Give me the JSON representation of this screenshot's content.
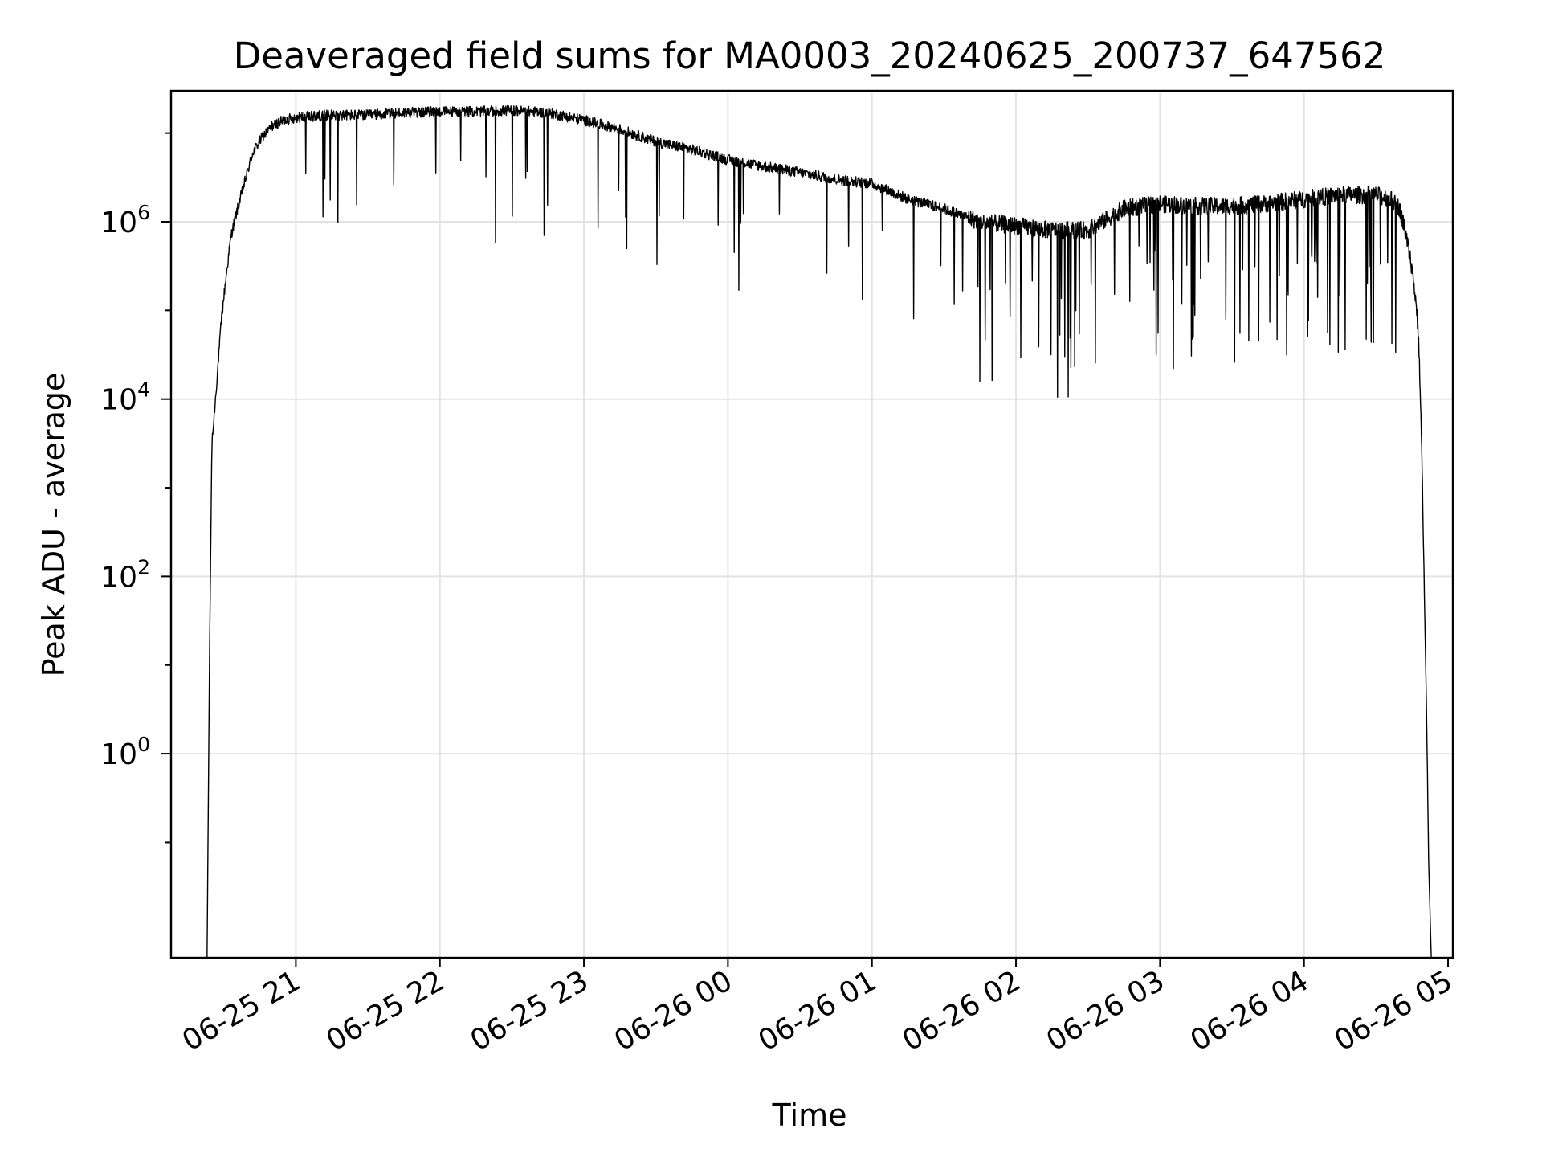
{
  "chart_data": {
    "type": "line",
    "title": "Deaveraged field sums for MA0003_20240625_200737_647562",
    "xlabel": "Time",
    "ylabel": "Peak ADU - average",
    "yscale": "log",
    "grid": true,
    "xlim": [
      "2024-06-25 20:08",
      "2024-06-26 05:02"
    ],
    "ylim": [
      0.005,
      30000000
    ],
    "x_ticks": [
      "06-25 21",
      "06-25 22",
      "06-25 23",
      "06-26 00",
      "06-26 01",
      "06-26 02",
      "06-26 03",
      "06-26 04",
      "06-26 05"
    ],
    "y_ticks": [
      {
        "base": "10",
        "exp": "6",
        "value": 1000000
      },
      {
        "base": "10",
        "exp": "4",
        "value": 10000
      },
      {
        "base": "10",
        "exp": "2",
        "value": 100
      },
      {
        "base": "10",
        "exp": "0",
        "value": 1
      }
    ],
    "series": [
      {
        "color": "#000000",
        "x": [
          "2024-06-25 20:23",
          "2024-06-25 20:24",
          "2024-06-25 20:25",
          "2024-06-25 20:27",
          "2024-06-25 20:29",
          "2024-06-25 20:31",
          "2024-06-25 20:33",
          "2024-06-25 20:36",
          "2024-06-25 20:39",
          "2024-06-25 20:42",
          "2024-06-25 20:46",
          "2024-06-25 20:50",
          "2024-06-25 20:55",
          "2024-06-25 21:00",
          "2024-06-25 21:15",
          "2024-06-25 21:30",
          "2024-06-25 21:45",
          "2024-06-25 22:00",
          "2024-06-25 22:15",
          "2024-06-25 22:30",
          "2024-06-25 22:45",
          "2024-06-25 23:00",
          "2024-06-25 23:15",
          "2024-06-25 23:30",
          "2024-06-25 23:45",
          "2024-06-26 00:00",
          "2024-06-26 00:15",
          "2024-06-26 00:30",
          "2024-06-26 00:45",
          "2024-06-26 01:00",
          "2024-06-26 01:15",
          "2024-06-26 01:30",
          "2024-06-26 01:45",
          "2024-06-26 02:00",
          "2024-06-26 02:15",
          "2024-06-26 02:30",
          "2024-06-26 02:45",
          "2024-06-26 03:00",
          "2024-06-26 03:15",
          "2024-06-26 03:30",
          "2024-06-26 03:45",
          "2024-06-26 04:00",
          "2024-06-26 04:15",
          "2024-06-26 04:30",
          "2024-06-26 04:36",
          "2024-06-26 04:40",
          "2024-06-26 04:43",
          "2024-06-26 04:45",
          "2024-06-26 04:47",
          "2024-06-26 04:48",
          "2024-06-26 04:49",
          "2024-06-26 04:50",
          "2024-06-26 04:51",
          "2024-06-26 04:52",
          "2024-06-26 04:53"
        ],
        "y": [
          0.005,
          10,
          3000,
          15000,
          80000,
          250000,
          700000,
          1500000,
          3000000,
          6000000,
          9000000,
          12000000,
          14000000,
          15000000,
          16000000,
          16000000,
          17000000,
          17500000,
          17500000,
          18000000,
          17000000,
          14000000,
          11000000,
          8000000,
          6500000,
          5000000,
          4200000,
          3600000,
          3000000,
          2700000,
          1800000,
          1400000,
          1000000,
          900000,
          800000,
          800000,
          1400000,
          1600000,
          1500000,
          1500000,
          1600000,
          1800000,
          2000000,
          2000000,
          1800000,
          1400000,
          600000,
          300000,
          100000,
          30000,
          3000,
          100,
          3,
          0.05,
          0.005
        ]
      }
    ]
  }
}
